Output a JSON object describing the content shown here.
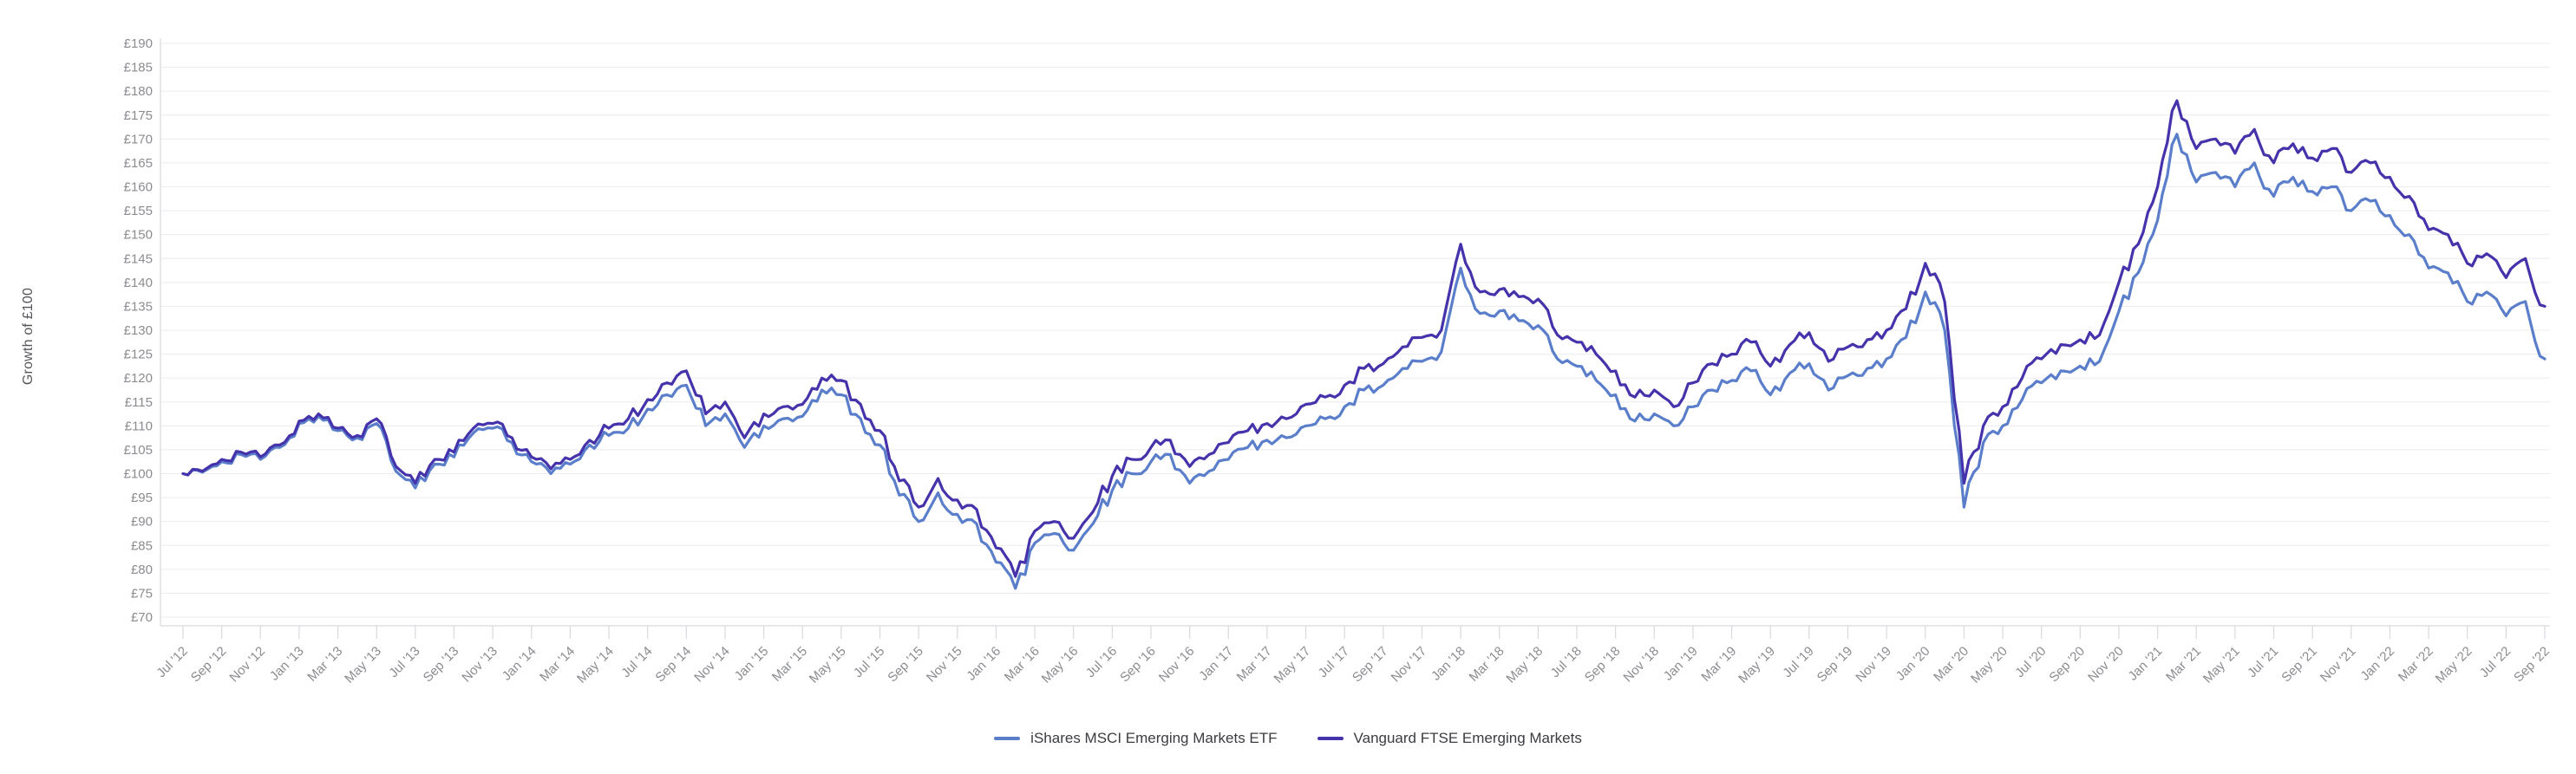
{
  "chart_data": {
    "type": "line",
    "title": "",
    "ylabel": "Growth of £100",
    "currency_prefix": "£",
    "ylim": [
      70,
      190
    ],
    "y_step": 5,
    "y_tick_labels": [
      "£70",
      "£75",
      "£80",
      "£85",
      "£90",
      "£95",
      "£100",
      "£105",
      "£110",
      "£115",
      "£120",
      "£125",
      "£130",
      "£135",
      "£140",
      "£145",
      "£150",
      "£155",
      "£160",
      "£165",
      "£170",
      "£175",
      "£180",
      "£185",
      "£190"
    ],
    "x_tick_labels": [
      "Jul '12",
      "Sep '12",
      "Nov '12",
      "Jan '13",
      "Mar '13",
      "May '13",
      "Jul '13",
      "Sep '13",
      "Nov '13",
      "Jan '14",
      "Mar '14",
      "May '14",
      "Jul '14",
      "Sep '14",
      "Nov '14",
      "Jan '15",
      "Mar '15",
      "May '15",
      "Jul '15",
      "Sep '15",
      "Nov '15",
      "Jan '16",
      "Mar '16",
      "May '16",
      "Jul '16",
      "Sep '16",
      "Nov '16",
      "Jan '17",
      "Mar '17",
      "May '17",
      "Jul '17",
      "Sep '17",
      "Nov '17",
      "Jan '18",
      "Mar '18",
      "May '18",
      "Jul '18",
      "Sep '18",
      "Nov '18",
      "Jan '19",
      "Mar '19",
      "May '19",
      "Jul '19",
      "Sep '19",
      "Nov '19",
      "Jan '20",
      "Mar '20",
      "May '20",
      "Jul '20",
      "Sep '20",
      "Nov '20",
      "Jan '21",
      "Mar '21",
      "May '21",
      "Jul '21",
      "Sep '21",
      "Nov '21",
      "Jan '22",
      "Mar '22",
      "May '22",
      "Jul '22",
      "Sep '22"
    ],
    "x_months_per_tick": 2,
    "grid": "horizontal",
    "legend_position": "bottom-center",
    "axis_color": "#d9d9de",
    "gridline_color": "#ececf0",
    "tick_label_color": "#8b8c91",
    "series": [
      {
        "name": "iShares MSCI Emerging Markets ETF",
        "color": "#5b7ecb",
        "values": [
          100,
          100.3,
          102.5,
          104,
          103,
          105.5,
          110.5,
          112,
          109,
          107.5,
          110.5,
          100.5,
          97,
          102,
          103.5,
          108.5,
          109.5,
          106.5,
          102.5,
          100,
          102,
          106,
          108,
          109.5,
          113.5,
          116.5,
          118.5,
          110,
          112.5,
          105.5,
          110,
          111.5,
          112,
          117.5,
          116.5,
          111.5,
          106,
          95.5,
          90,
          96,
          91.5,
          89.5,
          81.5,
          76,
          85.5,
          87.5,
          84,
          89.5,
          96.5,
          100,
          102.5,
          104,
          98,
          100.5,
          103,
          105.5,
          107,
          107.5,
          110,
          111.5,
          114,
          117.5,
          118.5,
          122,
          123.5,
          125.5,
          143,
          133.5,
          134,
          132,
          131,
          124,
          122.5,
          119.5,
          116.5,
          111,
          112.5,
          110,
          114,
          117.5,
          119.5,
          121.5,
          116.5,
          121,
          123,
          117.5,
          120.5,
          122,
          124,
          128.5,
          138,
          130,
          93,
          106.5,
          110,
          115.5,
          119,
          121.5,
          122.5,
          123.5,
          134,
          142,
          153,
          171,
          161,
          163,
          160,
          165,
          158,
          162,
          159,
          160,
          155,
          157,
          154,
          150,
          143,
          142,
          136,
          138,
          133,
          136,
          124
        ]
      },
      {
        "name": "Vanguard FTSE Emerging Markets",
        "color": "#4533ab",
        "values": [
          100,
          100.5,
          103,
          104.5,
          103.5,
          106,
          111,
          112.5,
          109.5,
          108,
          111.5,
          101.5,
          98,
          103,
          104.5,
          109.5,
          110.5,
          107.5,
          103.5,
          101,
          103,
          107,
          109.5,
          111.5,
          115.5,
          119,
          121.5,
          112.5,
          115,
          107.5,
          112.5,
          114,
          114.5,
          120,
          119.5,
          114.5,
          109,
          98.5,
          93,
          99,
          94.5,
          92.5,
          84.5,
          78.5,
          88,
          90,
          86.5,
          92,
          99.5,
          103,
          105.5,
          107,
          101.5,
          104,
          106.5,
          109,
          110.5,
          111.5,
          114.5,
          116,
          118.5,
          122,
          123,
          126.5,
          128.5,
          130,
          148,
          138,
          138.5,
          137,
          136.5,
          129,
          127.5,
          125,
          121.5,
          116,
          117.5,
          114,
          119,
          123,
          125,
          127.5,
          122.5,
          127,
          129.5,
          123.5,
          126.5,
          128,
          130,
          134.5,
          144,
          136,
          98,
          110,
          114,
          120,
          124,
          127,
          128,
          129,
          140,
          148,
          160,
          178,
          168,
          170,
          167,
          172,
          165,
          169,
          166,
          168,
          163,
          165,
          162,
          158,
          151,
          150,
          144,
          146,
          141,
          145,
          135
        ]
      }
    ]
  }
}
